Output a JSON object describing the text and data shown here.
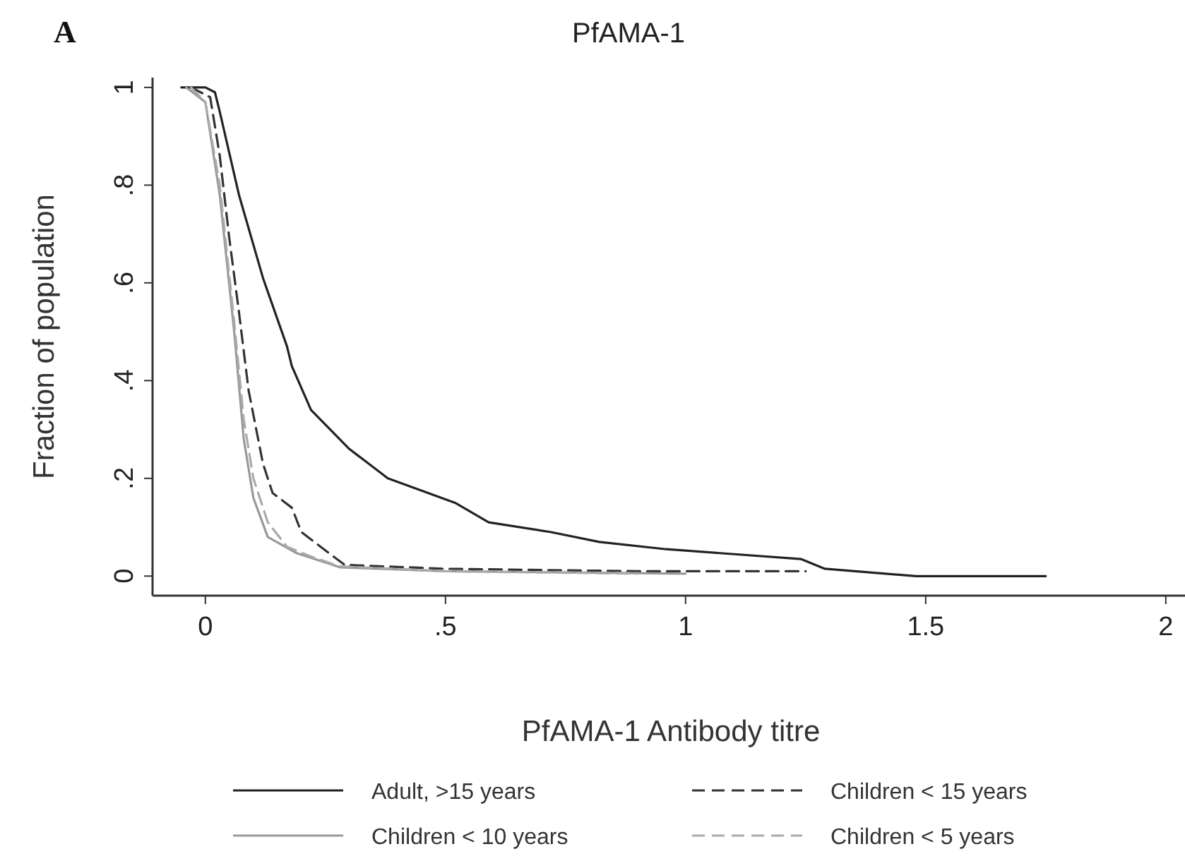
{
  "chart_data": {
    "type": "line",
    "title": "PfAMA-1",
    "xlabel": "PfAMA-1 Antibody titre",
    "ylabel": "Fraction of population",
    "annotations": [
      "A"
    ],
    "xlim": [
      -0.11,
      2.04
    ],
    "ylim": [
      -0.04,
      1.02
    ],
    "xticks": [
      0,
      {
        "value": 0.5,
        "label": ".5"
      },
      1,
      1.5,
      2
    ],
    "yticks": [
      0,
      {
        "value": 0.2,
        "label": ".2"
      },
      {
        "value": 0.4,
        "label": ".4"
      },
      {
        "value": 0.6,
        "label": ".6"
      },
      {
        "value": 0.8,
        "label": ".8"
      },
      1
    ],
    "legend": "bottom",
    "grid": false,
    "marker": "none",
    "series": [
      {
        "name": "Adult, >15 years",
        "color": "#222222",
        "line_style": "solid",
        "x": [
          -0.05,
          0.0,
          0.02,
          0.03,
          0.07,
          0.12,
          0.17,
          0.18,
          0.22,
          0.3,
          0.38,
          0.52,
          0.59,
          0.72,
          0.82,
          0.96,
          1.24,
          1.29,
          1.48,
          1.75
        ],
        "values": [
          1,
          1,
          0.99,
          0.95,
          0.78,
          0.61,
          0.47,
          0.43,
          0.34,
          0.26,
          0.2,
          0.15,
          0.11,
          0.09,
          0.07,
          0.055,
          0.035,
          0.015,
          0,
          0
        ]
      },
      {
        "name": "Children < 15 years",
        "color": "#333333",
        "line_style": "dashed",
        "x": [
          -0.03,
          0.01,
          0.03,
          0.05,
          0.07,
          0.09,
          0.12,
          0.14,
          0.18,
          0.2,
          0.24,
          0.29,
          0.5,
          0.9,
          1.25
        ],
        "values": [
          1,
          0.98,
          0.86,
          0.69,
          0.54,
          0.38,
          0.23,
          0.17,
          0.14,
          0.09,
          0.06,
          0.023,
          0.015,
          0.01,
          0.01
        ]
      },
      {
        "name": "Children < 10 years",
        "color": "#999999",
        "line_style": "solid",
        "x": [
          -0.04,
          0.0,
          0.03,
          0.06,
          0.08,
          0.1,
          0.13,
          0.19,
          0.28,
          0.5,
          1.0
        ],
        "values": [
          1,
          0.97,
          0.78,
          0.5,
          0.28,
          0.16,
          0.08,
          0.047,
          0.018,
          0.01,
          0.005
        ]
      },
      {
        "name": "Children < 5 years",
        "color": "#aaaaaa",
        "line_style": "dashed",
        "x": [
          -0.03,
          0.0,
          0.03,
          0.06,
          0.08,
          0.1,
          0.13,
          0.17,
          0.22,
          0.28,
          0.5,
          0.9
        ],
        "values": [
          1,
          0.97,
          0.8,
          0.52,
          0.32,
          0.2,
          0.11,
          0.06,
          0.04,
          0.02,
          0.01,
          0.005
        ]
      }
    ]
  }
}
